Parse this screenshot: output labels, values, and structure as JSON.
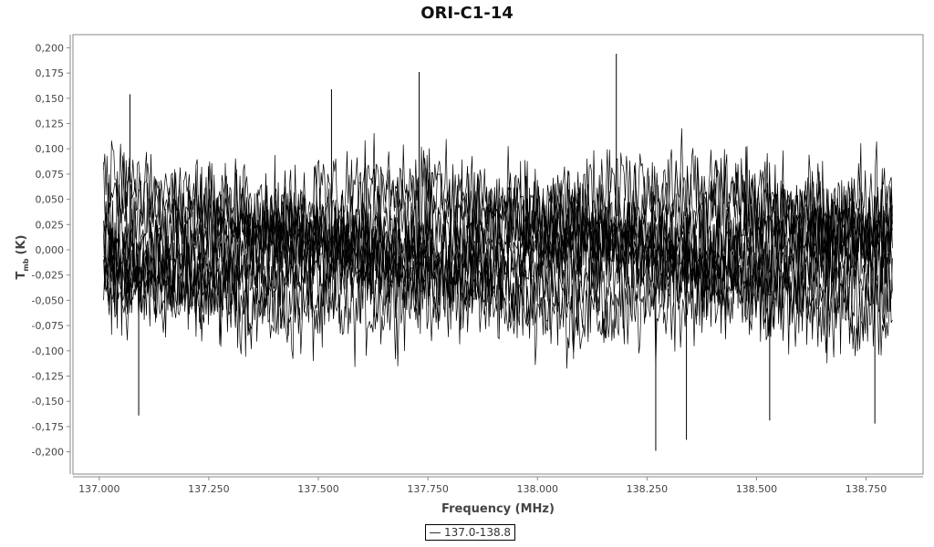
{
  "chart_data": {
    "type": "line",
    "title": "ORI-C1-14",
    "xlabel": "Frequency (MHz)",
    "ylabel_main": "T",
    "ylabel_sub": "mb",
    "ylabel_unit": "(K)",
    "xlim": [
      136.94,
      138.88
    ],
    "ylim": [
      -0.222,
      0.213
    ],
    "x_ticks": [
      "137.000",
      "137.250",
      "137.500",
      "137.750",
      "138.000",
      "138.250",
      "138.500",
      "138.750"
    ],
    "x_tick_values": [
      137.0,
      137.25,
      137.5,
      137.75,
      138.0,
      138.25,
      138.5,
      138.75
    ],
    "y_ticks": [
      "0,200",
      "0,175",
      "0,150",
      "0,125",
      "0,100",
      "0,075",
      "0,050",
      "0,025",
      "0,000",
      "-0,025",
      "-0,050",
      "-0,075",
      "-0,100",
      "-0,125",
      "-0,150",
      "-0,175",
      "-0,200"
    ],
    "y_tick_values": [
      0.2,
      0.175,
      0.15,
      0.125,
      0.1,
      0.075,
      0.05,
      0.025,
      0,
      -0.025,
      -0.05,
      -0.075,
      -0.1,
      -0.125,
      -0.15,
      -0.175,
      -0.2
    ],
    "grid": false,
    "legend_position": "bottom-center",
    "series": [
      {
        "name": "137.0-138.8",
        "color": "#000000",
        "x_range": [
          137.01,
          138.81
        ],
        "peaks": [
          [
            137.07,
            0.154
          ],
          [
            137.53,
            0.159
          ],
          [
            137.73,
            0.176
          ],
          [
            138.18,
            0.194
          ],
          [
            138.27,
            -0.199
          ],
          [
            138.34,
            -0.188
          ],
          [
            138.53,
            -0.169
          ],
          [
            138.77,
            -0.172
          ],
          [
            137.09,
            -0.164
          ]
        ]
      }
    ]
  }
}
